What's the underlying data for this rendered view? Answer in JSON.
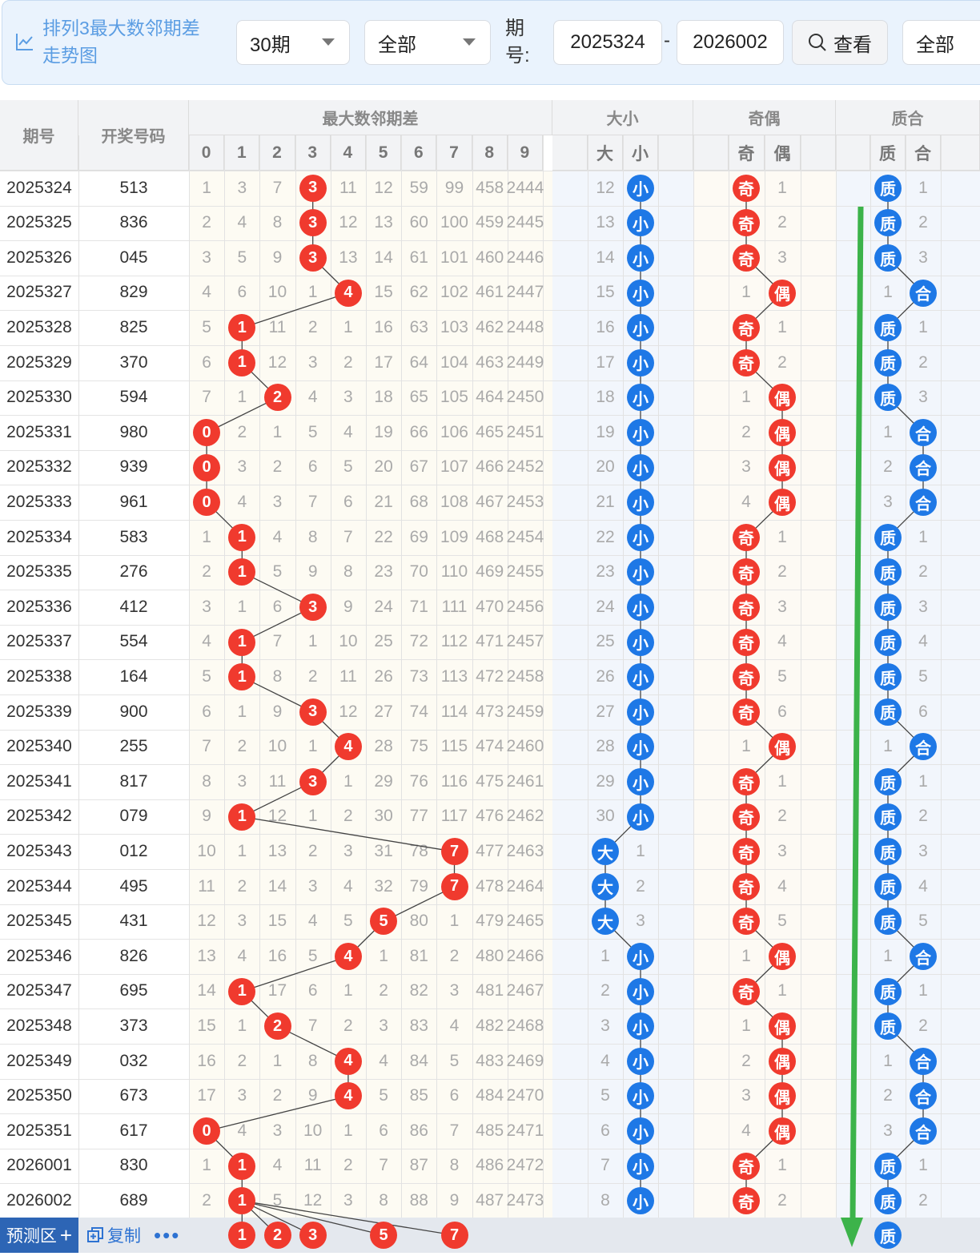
{
  "toolbar": {
    "title": "排列3最大数邻期差走势图",
    "period_select": "30期",
    "type_select": "全部",
    "issue_label": "期号:",
    "issue_from": "2025324",
    "issue_dash": "-",
    "issue_to": "2026002",
    "view_button": "查看",
    "filter_select": "全部"
  },
  "headers": {
    "issue": "期号",
    "code": "开奖号码",
    "group_diff": "最大数邻期差",
    "group_size": "大小",
    "group_parity": "奇偶",
    "group_prime": "质合",
    "digits": [
      "0",
      "1",
      "2",
      "3",
      "4",
      "5",
      "6",
      "7",
      "8",
      "9"
    ],
    "size": [
      "大",
      "小"
    ],
    "parity": [
      "奇",
      "偶"
    ],
    "prime": [
      "质",
      "合"
    ]
  },
  "rows": [
    {
      "issue": "2025324",
      "code": "513",
      "diff": [
        1,
        3,
        7,
        3,
        11,
        12,
        59,
        99,
        458,
        2444
      ],
      "hit": 3,
      "size": [
        12,
        "小"
      ],
      "sizeHit": 1,
      "par": [
        "奇",
        1
      ],
      "parHit": 0,
      "pri": [
        "质",
        1
      ],
      "priHit": 0
    },
    {
      "issue": "2025325",
      "code": "836",
      "diff": [
        2,
        4,
        8,
        3,
        12,
        13,
        60,
        100,
        459,
        2445
      ],
      "hit": 3,
      "size": [
        13,
        "小"
      ],
      "sizeHit": 1,
      "par": [
        "奇",
        2
      ],
      "parHit": 0,
      "pri": [
        "质",
        2
      ],
      "priHit": 0
    },
    {
      "issue": "2025326",
      "code": "045",
      "diff": [
        3,
        5,
        9,
        3,
        13,
        14,
        61,
        101,
        460,
        2446
      ],
      "hit": 3,
      "size": [
        14,
        "小"
      ],
      "sizeHit": 1,
      "par": [
        "奇",
        3
      ],
      "parHit": 0,
      "pri": [
        "质",
        3
      ],
      "priHit": 0
    },
    {
      "issue": "2025327",
      "code": "829",
      "diff": [
        4,
        6,
        10,
        1,
        4,
        15,
        62,
        102,
        461,
        2447
      ],
      "hit": 4,
      "size": [
        15,
        "小"
      ],
      "sizeHit": 1,
      "par": [
        1,
        "偶"
      ],
      "parHit": 1,
      "pri": [
        1,
        "合"
      ],
      "priHit": 1
    },
    {
      "issue": "2025328",
      "code": "825",
      "diff": [
        5,
        1,
        11,
        2,
        1,
        16,
        63,
        103,
        462,
        2448
      ],
      "hit": 1,
      "size": [
        16,
        "小"
      ],
      "sizeHit": 1,
      "par": [
        "奇",
        1
      ],
      "parHit": 0,
      "pri": [
        "质",
        1
      ],
      "priHit": 0
    },
    {
      "issue": "2025329",
      "code": "370",
      "diff": [
        6,
        1,
        12,
        3,
        2,
        17,
        64,
        104,
        463,
        2449
      ],
      "hit": 1,
      "size": [
        17,
        "小"
      ],
      "sizeHit": 1,
      "par": [
        "奇",
        2
      ],
      "parHit": 0,
      "pri": [
        "质",
        2
      ],
      "priHit": 0
    },
    {
      "issue": "2025330",
      "code": "594",
      "diff": [
        7,
        1,
        2,
        4,
        3,
        18,
        65,
        105,
        464,
        2450
      ],
      "hit": 2,
      "size": [
        18,
        "小"
      ],
      "sizeHit": 1,
      "par": [
        1,
        "偶"
      ],
      "parHit": 1,
      "pri": [
        "质",
        3
      ],
      "priHit": 0
    },
    {
      "issue": "2025331",
      "code": "980",
      "diff": [
        0,
        2,
        1,
        5,
        4,
        19,
        66,
        106,
        465,
        2451
      ],
      "hit": 0,
      "size": [
        19,
        "小"
      ],
      "sizeHit": 1,
      "par": [
        2,
        "偶"
      ],
      "parHit": 1,
      "pri": [
        1,
        "合"
      ],
      "priHit": 1
    },
    {
      "issue": "2025332",
      "code": "939",
      "diff": [
        0,
        3,
        2,
        6,
        5,
        20,
        67,
        107,
        466,
        2452
      ],
      "hit": 0,
      "size": [
        20,
        "小"
      ],
      "sizeHit": 1,
      "par": [
        3,
        "偶"
      ],
      "parHit": 1,
      "pri": [
        2,
        "合"
      ],
      "priHit": 1
    },
    {
      "issue": "2025333",
      "code": "961",
      "diff": [
        0,
        4,
        3,
        7,
        6,
        21,
        68,
        108,
        467,
        2453
      ],
      "hit": 0,
      "size": [
        21,
        "小"
      ],
      "sizeHit": 1,
      "par": [
        4,
        "偶"
      ],
      "parHit": 1,
      "pri": [
        3,
        "合"
      ],
      "priHit": 1
    },
    {
      "issue": "2025334",
      "code": "583",
      "diff": [
        1,
        1,
        4,
        8,
        7,
        22,
        69,
        109,
        468,
        2454
      ],
      "hit": 1,
      "size": [
        22,
        "小"
      ],
      "sizeHit": 1,
      "par": [
        "奇",
        1
      ],
      "parHit": 0,
      "pri": [
        "质",
        1
      ],
      "priHit": 0
    },
    {
      "issue": "2025335",
      "code": "276",
      "diff": [
        2,
        1,
        5,
        9,
        8,
        23,
        70,
        110,
        469,
        2455
      ],
      "hit": 1,
      "size": [
        23,
        "小"
      ],
      "sizeHit": 1,
      "par": [
        "奇",
        2
      ],
      "parHit": 0,
      "pri": [
        "质",
        2
      ],
      "priHit": 0
    },
    {
      "issue": "2025336",
      "code": "412",
      "diff": [
        3,
        1,
        6,
        3,
        9,
        24,
        71,
        111,
        470,
        2456
      ],
      "hit": 3,
      "size": [
        24,
        "小"
      ],
      "sizeHit": 1,
      "par": [
        "奇",
        3
      ],
      "parHit": 0,
      "pri": [
        "质",
        3
      ],
      "priHit": 0
    },
    {
      "issue": "2025337",
      "code": "554",
      "diff": [
        4,
        1,
        7,
        1,
        10,
        25,
        72,
        112,
        471,
        2457
      ],
      "hit": 1,
      "size": [
        25,
        "小"
      ],
      "sizeHit": 1,
      "par": [
        "奇",
        4
      ],
      "parHit": 0,
      "pri": [
        "质",
        4
      ],
      "priHit": 0
    },
    {
      "issue": "2025338",
      "code": "164",
      "diff": [
        5,
        1,
        8,
        2,
        11,
        26,
        73,
        113,
        472,
        2458
      ],
      "hit": 1,
      "size": [
        26,
        "小"
      ],
      "sizeHit": 1,
      "par": [
        "奇",
        5
      ],
      "parHit": 0,
      "pri": [
        "质",
        5
      ],
      "priHit": 0
    },
    {
      "issue": "2025339",
      "code": "900",
      "diff": [
        6,
        1,
        9,
        3,
        12,
        27,
        74,
        114,
        473,
        2459
      ],
      "hit": 3,
      "size": [
        27,
        "小"
      ],
      "sizeHit": 1,
      "par": [
        "奇",
        6
      ],
      "parHit": 0,
      "pri": [
        "质",
        6
      ],
      "priHit": 0
    },
    {
      "issue": "2025340",
      "code": "255",
      "diff": [
        7,
        2,
        10,
        1,
        4,
        28,
        75,
        115,
        474,
        2460
      ],
      "hit": 4,
      "size": [
        28,
        "小"
      ],
      "sizeHit": 1,
      "par": [
        1,
        "偶"
      ],
      "parHit": 1,
      "pri": [
        1,
        "合"
      ],
      "priHit": 1
    },
    {
      "issue": "2025341",
      "code": "817",
      "diff": [
        8,
        3,
        11,
        3,
        1,
        29,
        76,
        116,
        475,
        2461
      ],
      "hit": 3,
      "size": [
        29,
        "小"
      ],
      "sizeHit": 1,
      "par": [
        "奇",
        1
      ],
      "parHit": 0,
      "pri": [
        "质",
        1
      ],
      "priHit": 0
    },
    {
      "issue": "2025342",
      "code": "079",
      "diff": [
        9,
        1,
        12,
        1,
        2,
        30,
        77,
        117,
        476,
        2462
      ],
      "hit": 1,
      "size": [
        30,
        "小"
      ],
      "sizeHit": 1,
      "par": [
        "奇",
        2
      ],
      "parHit": 0,
      "pri": [
        "质",
        2
      ],
      "priHit": 0
    },
    {
      "issue": "2025343",
      "code": "012",
      "diff": [
        10,
        1,
        13,
        2,
        3,
        31,
        78,
        7,
        477,
        2463
      ],
      "hit": 7,
      "size": [
        "大",
        1
      ],
      "sizeHit": 0,
      "par": [
        "奇",
        3
      ],
      "parHit": 0,
      "pri": [
        "质",
        3
      ],
      "priHit": 0
    },
    {
      "issue": "2025344",
      "code": "495",
      "diff": [
        11,
        2,
        14,
        3,
        4,
        32,
        79,
        7,
        478,
        2464
      ],
      "hit": 7,
      "size": [
        "大",
        2
      ],
      "sizeHit": 0,
      "par": [
        "奇",
        4
      ],
      "parHit": 0,
      "pri": [
        "质",
        4
      ],
      "priHit": 0
    },
    {
      "issue": "2025345",
      "code": "431",
      "diff": [
        12,
        3,
        15,
        4,
        5,
        5,
        80,
        1,
        479,
        2465
      ],
      "hit": 5,
      "size": [
        "大",
        3
      ],
      "sizeHit": 0,
      "par": [
        "奇",
        5
      ],
      "parHit": 0,
      "pri": [
        "质",
        5
      ],
      "priHit": 0
    },
    {
      "issue": "2025346",
      "code": "826",
      "diff": [
        13,
        4,
        16,
        5,
        4,
        1,
        81,
        2,
        480,
        2466
      ],
      "hit": 4,
      "size": [
        1,
        "小"
      ],
      "sizeHit": 1,
      "par": [
        1,
        "偶"
      ],
      "parHit": 1,
      "pri": [
        1,
        "合"
      ],
      "priHit": 1
    },
    {
      "issue": "2025347",
      "code": "695",
      "diff": [
        14,
        1,
        17,
        6,
        1,
        2,
        82,
        3,
        481,
        2467
      ],
      "hit": 1,
      "size": [
        2,
        "小"
      ],
      "sizeHit": 1,
      "par": [
        "奇",
        1
      ],
      "parHit": 0,
      "pri": [
        "质",
        1
      ],
      "priHit": 0
    },
    {
      "issue": "2025348",
      "code": "373",
      "diff": [
        15,
        1,
        2,
        7,
        2,
        3,
        83,
        4,
        482,
        2468
      ],
      "hit": 2,
      "size": [
        3,
        "小"
      ],
      "sizeHit": 1,
      "par": [
        1,
        "偶"
      ],
      "parHit": 1,
      "pri": [
        "质",
        2
      ],
      "priHit": 0
    },
    {
      "issue": "2025349",
      "code": "032",
      "diff": [
        16,
        2,
        1,
        8,
        4,
        4,
        84,
        5,
        483,
        2469
      ],
      "hit": 4,
      "size": [
        4,
        "小"
      ],
      "sizeHit": 1,
      "par": [
        2,
        "偶"
      ],
      "parHit": 1,
      "pri": [
        1,
        "合"
      ],
      "priHit": 1
    },
    {
      "issue": "2025350",
      "code": "673",
      "diff": [
        17,
        3,
        2,
        9,
        4,
        5,
        85,
        6,
        484,
        2470
      ],
      "hit": 4,
      "size": [
        5,
        "小"
      ],
      "sizeHit": 1,
      "par": [
        3,
        "偶"
      ],
      "parHit": 1,
      "pri": [
        2,
        "合"
      ],
      "priHit": 1
    },
    {
      "issue": "2025351",
      "code": "617",
      "diff": [
        0,
        4,
        3,
        10,
        1,
        6,
        86,
        7,
        485,
        2471
      ],
      "hit": 0,
      "size": [
        6,
        "小"
      ],
      "sizeHit": 1,
      "par": [
        4,
        "偶"
      ],
      "parHit": 1,
      "pri": [
        3,
        "合"
      ],
      "priHit": 1
    },
    {
      "issue": "2026001",
      "code": "830",
      "diff": [
        1,
        1,
        4,
        11,
        2,
        7,
        87,
        8,
        486,
        2472
      ],
      "hit": 1,
      "size": [
        7,
        "小"
      ],
      "sizeHit": 1,
      "par": [
        "奇",
        1
      ],
      "parHit": 0,
      "pri": [
        "质",
        1
      ],
      "priHit": 0
    },
    {
      "issue": "2026002",
      "code": "689",
      "diff": [
        2,
        1,
        5,
        12,
        3,
        8,
        88,
        9,
        487,
        2473
      ],
      "hit": 1,
      "size": [
        8,
        "小"
      ],
      "sizeHit": 1,
      "par": [
        "奇",
        2
      ],
      "parHit": 0,
      "pri": [
        "质",
        2
      ],
      "priHit": 0
    }
  ],
  "prediction": {
    "label": "预测区",
    "plus": "+",
    "copy_label": "复制",
    "more": "•••",
    "digits": [
      1,
      2,
      3,
      5,
      7
    ],
    "prime_pick": "质"
  },
  "colors": {
    "red_ball": "#f03a2e",
    "blue_ball": "#1e78e6",
    "trend_arrow": "#3cb34a",
    "header_bg": "#f2f3f5",
    "digit_bg": "#fdfbf3",
    "side_bg": "#f2f6fc"
  }
}
